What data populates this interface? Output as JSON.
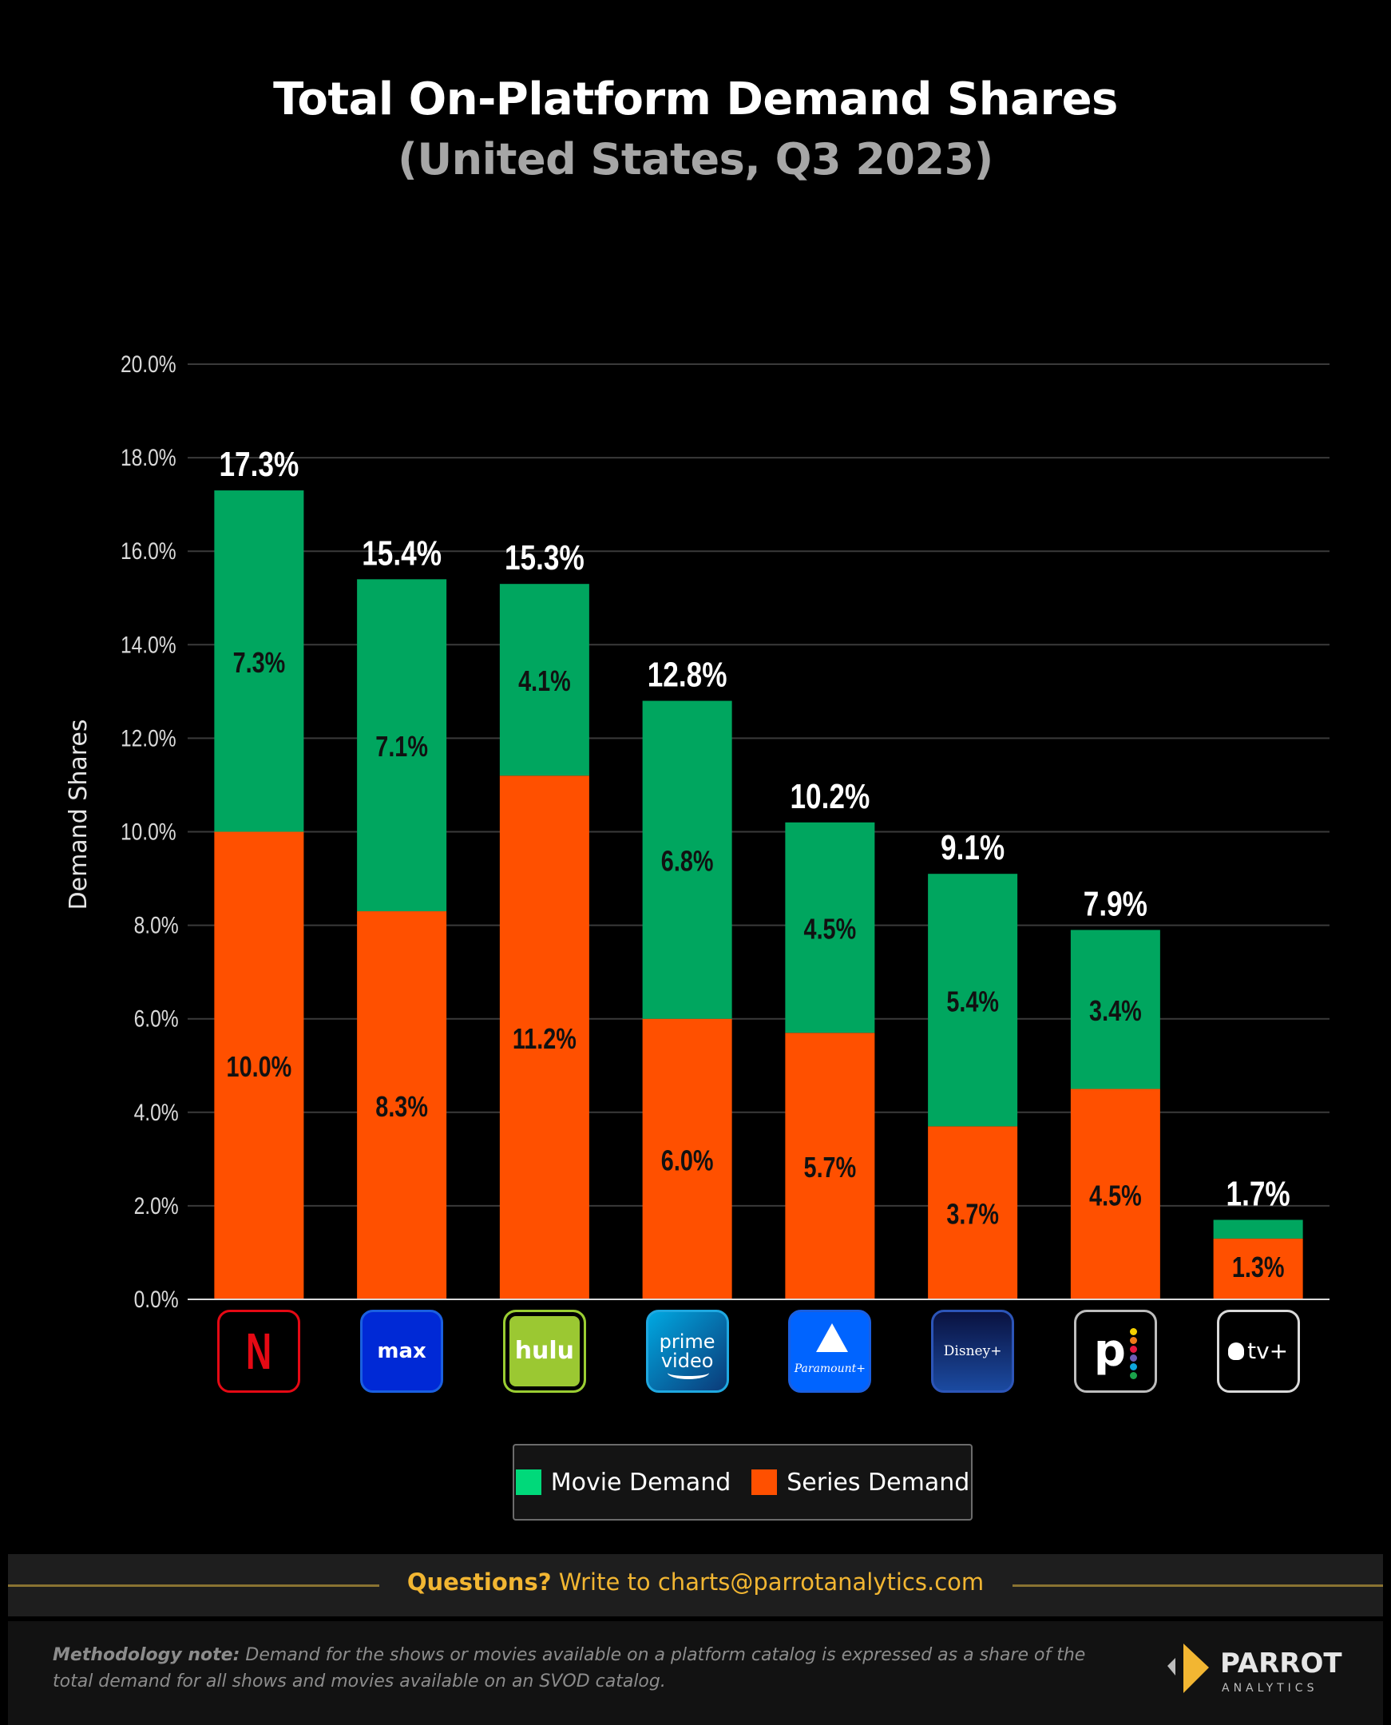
{
  "header": {
    "title": "Total On-Platform Demand Shares",
    "subtitle": "(United States, Q3 2023)"
  },
  "chart_data": {
    "type": "bar",
    "stacked": true,
    "title": "Total On-Platform Demand Shares",
    "subtitle": "(United States, Q3 2023)",
    "xlabel": "",
    "ylabel": "Demand Shares",
    "ylim": [
      0,
      20
    ],
    "yticks": [
      0,
      2,
      4,
      6,
      8,
      10,
      12,
      14,
      16,
      18,
      20
    ],
    "ytick_labels": [
      "0.0%",
      "2.0%",
      "4.0%",
      "6.0%",
      "8.0%",
      "10.0%",
      "12.0%",
      "14.0%",
      "16.0%",
      "18.0%",
      "20.0%"
    ],
    "grid": true,
    "legend_position": "bottom-center",
    "categories": [
      "Netflix",
      "Max",
      "Hulu",
      "Prime Video",
      "Paramount+",
      "Disney+",
      "Peacock",
      "Apple TV+"
    ],
    "series": [
      {
        "name": "Series Demand",
        "color": "#ff5000",
        "values": [
          10.0,
          8.3,
          11.2,
          6.0,
          5.7,
          3.7,
          4.5,
          1.3
        ],
        "labels": [
          "10.0%",
          "8.3%",
          "11.2%",
          "6.0%",
          "5.7%",
          "3.7%",
          "4.5%",
          "1.3%"
        ]
      },
      {
        "name": "Movie Demand",
        "color": "#00a65f",
        "values": [
          7.3,
          7.1,
          4.1,
          6.8,
          4.5,
          5.4,
          3.4,
          0.4
        ],
        "labels": [
          "7.3%",
          "7.1%",
          "4.1%",
          "6.8%",
          "4.5%",
          "5.4%",
          "3.4%",
          ""
        ]
      }
    ],
    "totals": [
      17.3,
      15.4,
      15.3,
      12.8,
      10.2,
      9.1,
      7.9,
      1.7
    ],
    "total_labels": [
      "17.3%",
      "15.4%",
      "15.3%",
      "12.8%",
      "10.2%",
      "9.1%",
      "7.9%",
      "1.7%"
    ]
  },
  "logos": [
    {
      "name": "netflix",
      "text": "N",
      "border": "#e50914",
      "bg": "#000000",
      "fg": "#e50914"
    },
    {
      "name": "max",
      "text": "max",
      "border": "#1a5fe0",
      "bg": "#0029d6",
      "fg": "#ffffff"
    },
    {
      "name": "hulu",
      "text": "hulu",
      "border": "#9acd32",
      "bg": "#9bc832",
      "fg": "#ffffff"
    },
    {
      "name": "prime-video",
      "text": "prime video",
      "border": "#1fa8e0",
      "bg": "#0b4f8a",
      "fg": "#ffffff"
    },
    {
      "name": "paramount-plus",
      "text": "Paramount+",
      "border": "#1a5fe0",
      "bg": "#0064ff",
      "fg": "#ffffff"
    },
    {
      "name": "disney-plus",
      "text": "Disney+",
      "border": "#2c55b8",
      "bg": "#0b1c4f",
      "fg": "#ffffff"
    },
    {
      "name": "peacock",
      "text": "p",
      "border": "#bdbdbd",
      "bg": "#000000",
      "fg": "#ffffff"
    },
    {
      "name": "apple-tv-plus",
      "text": "tv+",
      "border": "#d9d9d9",
      "bg": "#000000",
      "fg": "#ffffff"
    }
  ],
  "legend": {
    "items": [
      {
        "label": "Movie Demand",
        "color": "#00d97a"
      },
      {
        "label": "Series Demand",
        "color": "#ff5000"
      }
    ]
  },
  "footer": {
    "questions_bold": "Questions?",
    "questions_rest": " Write to charts@parrotanalytics.com",
    "methodology_bold": "Methodology note:",
    "methodology_rest": " Demand for the shows or movies available on a platform catalog is expressed as a share of the total demand for all shows and movies available on an SVOD catalog.",
    "brand_name": "PARROT",
    "brand_sub": "ANALYTICS"
  }
}
